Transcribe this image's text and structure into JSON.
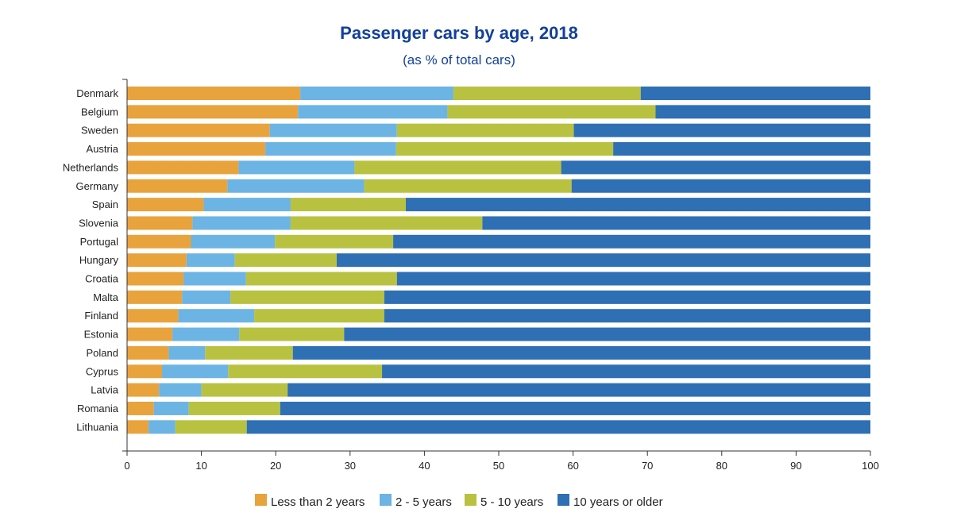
{
  "chart_data": {
    "type": "bar",
    "orientation": "horizontal",
    "stacked": true,
    "title": "Passenger cars by age, 2018",
    "subtitle": "(as % of total cars)",
    "xlabel": "",
    "ylabel": "",
    "xlim": [
      0,
      100
    ],
    "xticks": [
      0,
      10,
      20,
      30,
      40,
      50,
      60,
      70,
      80,
      90,
      100
    ],
    "grid": false,
    "legend_position": "bottom",
    "categories": [
      "Denmark",
      "Belgium",
      "Sweden",
      "Austria",
      "Netherlands",
      "Germany",
      "Spain",
      "Slovenia",
      "Portugal",
      "Hungary",
      "Croatia",
      "Malta",
      "Finland",
      "Estonia",
      "Poland",
      "Cyprus",
      "Latvia",
      "Romania",
      "Lithuania"
    ],
    "series": [
      {
        "name": "Less than 2 years",
        "color": "#e8a33d",
        "values": [
          23.3,
          23.0,
          19.2,
          18.6,
          15.0,
          13.5,
          10.3,
          8.8,
          8.6,
          8.0,
          7.6,
          7.4,
          6.9,
          6.1,
          5.6,
          4.7,
          4.3,
          3.6,
          2.9
        ]
      },
      {
        "name": "2 - 5 years",
        "color": "#6cb4e4",
        "values": [
          20.6,
          20.1,
          17.1,
          17.6,
          15.6,
          18.4,
          11.7,
          13.2,
          11.3,
          6.5,
          8.4,
          6.5,
          10.2,
          9.0,
          4.9,
          8.9,
          5.7,
          4.7,
          3.6
        ]
      },
      {
        "name": "5 - 10 years",
        "color": "#b8c240",
        "values": [
          25.2,
          28.0,
          23.8,
          29.2,
          27.8,
          27.9,
          15.5,
          25.8,
          15.9,
          13.7,
          20.3,
          20.7,
          17.5,
          14.1,
          11.8,
          20.7,
          11.6,
          12.3,
          9.6
        ]
      },
      {
        "name": "10 years or older",
        "color": "#2f6fb4",
        "values": [
          30.9,
          28.9,
          39.9,
          34.6,
          41.6,
          40.2,
          62.5,
          52.2,
          64.2,
          71.8,
          63.7,
          65.4,
          65.4,
          70.8,
          77.7,
          65.7,
          78.4,
          79.4,
          83.9
        ]
      }
    ]
  }
}
